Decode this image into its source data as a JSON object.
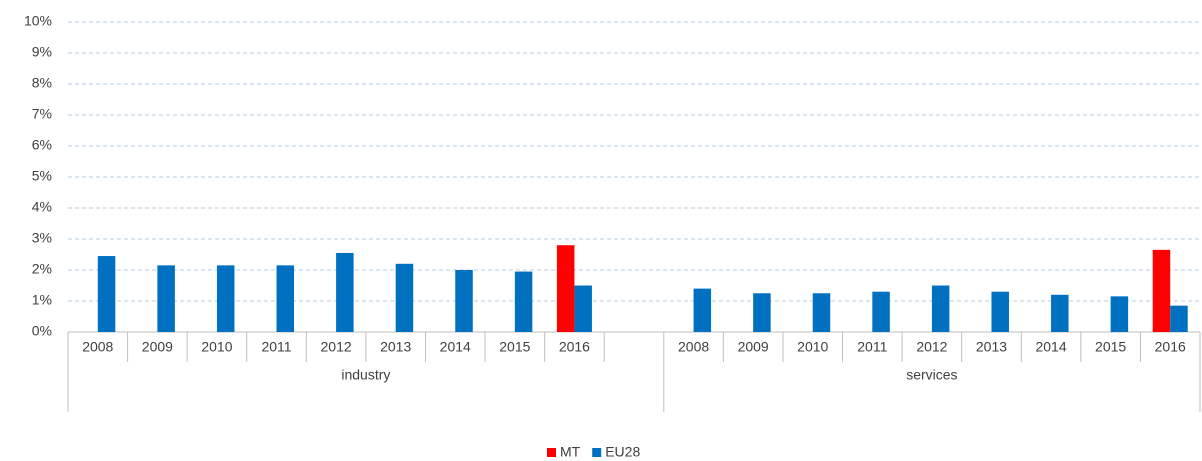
{
  "chart_data": {
    "type": "bar",
    "groups": [
      {
        "label": "industry",
        "categories": [
          "2008",
          "2009",
          "2010",
          "2011",
          "2012",
          "2013",
          "2014",
          "2015",
          "2016",
          null
        ]
      },
      {
        "label": "services",
        "categories": [
          "2008",
          "2009",
          "2010",
          "2011",
          "2012",
          "2013",
          "2014",
          "2015",
          "2016"
        ]
      }
    ],
    "series": [
      {
        "name": "MT",
        "color": "#ff0000",
        "values": [
          null,
          null,
          null,
          null,
          null,
          null,
          null,
          null,
          2.8,
          null,
          null,
          null,
          null,
          null,
          null,
          null,
          null,
          null,
          2.65
        ]
      },
      {
        "name": "EU28",
        "color": "#0070c0",
        "values": [
          2.45,
          2.15,
          2.15,
          2.15,
          2.55,
          2.2,
          2.0,
          1.95,
          1.5,
          null,
          1.4,
          1.25,
          1.25,
          1.3,
          1.5,
          1.3,
          1.2,
          1.15,
          0.85
        ]
      }
    ],
    "ylim": [
      0,
      10
    ],
    "yticks": [
      {
        "value": 0,
        "label": "0%"
      },
      {
        "value": 1,
        "label": "1%"
      },
      {
        "value": 2,
        "label": "2%"
      },
      {
        "value": 3,
        "label": "3%"
      },
      {
        "value": 4,
        "label": "4%"
      },
      {
        "value": 5,
        "label": "5%"
      },
      {
        "value": 6,
        "label": "6%"
      },
      {
        "value": 7,
        "label": "7%"
      },
      {
        "value": 8,
        "label": "8%"
      },
      {
        "value": 9,
        "label": "9%"
      },
      {
        "value": 10,
        "label": "10%"
      }
    ],
    "grid": true,
    "legend": "bottom"
  }
}
